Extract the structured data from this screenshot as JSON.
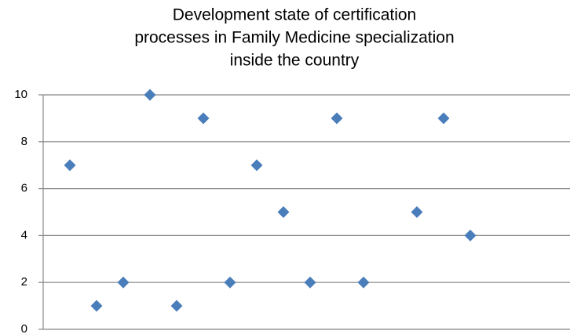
{
  "chart_data": {
    "type": "scatter",
    "title": [
      "Development state of certification",
      "processes in Family Medicine specialization",
      "inside the country"
    ],
    "x": [
      1,
      2,
      3,
      4,
      5,
      6,
      7,
      8,
      9,
      10,
      11,
      12,
      14,
      15,
      16
    ],
    "values": [
      7,
      1,
      2,
      10,
      1,
      9,
      2,
      7,
      5,
      2,
      9,
      2,
      5,
      9,
      4
    ],
    "color": "#4a7ebb",
    "xlim": [
      0,
      20
    ],
    "ylim": [
      0,
      10
    ],
    "yticks": [
      0,
      2,
      4,
      6,
      8,
      10
    ],
    "grid": true
  }
}
